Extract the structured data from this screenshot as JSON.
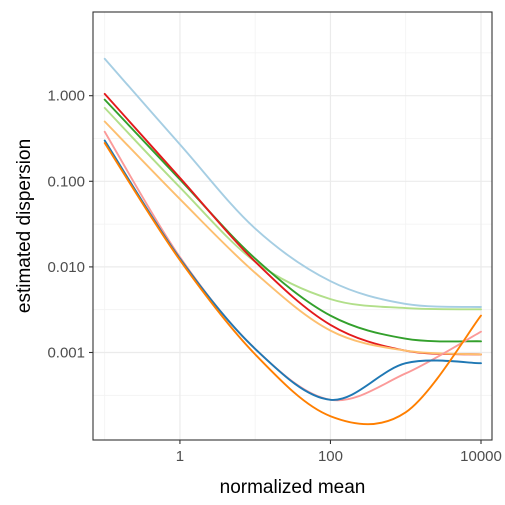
{
  "chart_data": {
    "type": "line",
    "title": "",
    "xlabel": "normalized mean",
    "ylabel": "estimated dispersion",
    "x_scale": "log10",
    "y_scale": "log10",
    "xlim": [
      0.07,
      14000
    ],
    "ylim": [
      9.5e-05,
      9.5
    ],
    "x_ticks": [
      {
        "value": 1,
        "label": "1"
      },
      {
        "value": 100,
        "label": "100"
      },
      {
        "value": 10000,
        "label": "10000"
      }
    ],
    "y_ticks": [
      {
        "value": 0.001,
        "label": "0.001"
      },
      {
        "value": 0.01,
        "label": "0.010"
      },
      {
        "value": 0.1,
        "label": "0.100"
      },
      {
        "value": 1,
        "label": "1.000"
      }
    ],
    "grid": true,
    "legend": "none",
    "series": [
      {
        "color": "#a6cee3",
        "points": [
          [
            0.1,
            2.7
          ],
          [
            1,
            0.27
          ],
          [
            10,
            0.028
          ],
          [
            100,
            0.0068
          ],
          [
            1000,
            0.0037
          ],
          [
            10000,
            0.0034
          ]
        ]
      },
      {
        "color": "#b2df8a",
        "points": [
          [
            0.1,
            0.72
          ],
          [
            1,
            0.085
          ],
          [
            10,
            0.0115
          ],
          [
            100,
            0.0042
          ],
          [
            1000,
            0.0033
          ],
          [
            10000,
            0.0032
          ]
        ]
      },
      {
        "color": "#33a02c",
        "points": [
          [
            0.1,
            0.9
          ],
          [
            1,
            0.105
          ],
          [
            10,
            0.0125
          ],
          [
            100,
            0.0027
          ],
          [
            1000,
            0.00145
          ],
          [
            10000,
            0.00135
          ]
        ]
      },
      {
        "color": "#e31a1c",
        "points": [
          [
            0.1,
            1.05
          ],
          [
            1,
            0.11
          ],
          [
            10,
            0.0115
          ],
          [
            100,
            0.0021
          ],
          [
            1000,
            0.00105
          ],
          [
            10000,
            0.00095
          ]
        ]
      },
      {
        "color": "#fdbf6f",
        "points": [
          [
            0.1,
            0.5
          ],
          [
            1,
            0.062
          ],
          [
            10,
            0.0085
          ],
          [
            100,
            0.0018
          ],
          [
            1000,
            0.00105
          ],
          [
            10000,
            0.00095
          ]
        ]
      },
      {
        "color": "#fb9a99",
        "points": [
          [
            0.1,
            0.38
          ],
          [
            1,
            0.013
          ],
          [
            10,
            0.0011
          ],
          [
            100,
            0.00028
          ],
          [
            1000,
            0.00057
          ],
          [
            10000,
            0.00175
          ]
        ]
      },
      {
        "color": "#1f78b4",
        "points": [
          [
            0.1,
            0.3
          ],
          [
            1,
            0.0125
          ],
          [
            10,
            0.0011
          ],
          [
            100,
            0.00028
          ],
          [
            1000,
            0.00075
          ],
          [
            10000,
            0.00075
          ]
        ]
      },
      {
        "color": "#ff7f00",
        "points": [
          [
            0.1,
            0.28
          ],
          [
            1,
            0.012
          ],
          [
            10,
            0.00095
          ],
          [
            100,
            0.00018
          ],
          [
            1000,
            0.0002
          ],
          [
            10000,
            0.0027
          ]
        ]
      }
    ]
  }
}
